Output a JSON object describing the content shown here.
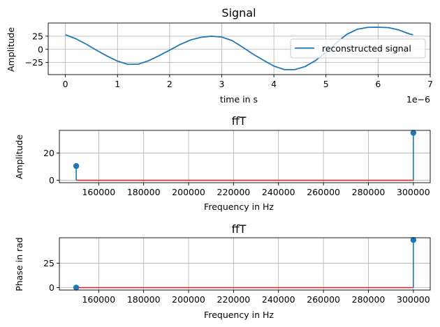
{
  "colors": {
    "series": "#1f77b4",
    "baseline": "#d62728",
    "grid": "#b0b0b0"
  },
  "chart_data": [
    {
      "type": "line",
      "title": "Signal",
      "xlabel": "time in s",
      "ylabel": "Amplitude",
      "x_offset_label": "1e−6",
      "xlim": [
        -0.33,
        7.0
      ],
      "ylim": [
        -48,
        50
      ],
      "xticks": [
        0,
        1,
        2,
        3,
        4,
        5,
        6,
        7
      ],
      "xtick_labels": [
        "0",
        "1",
        "2",
        "3",
        "4",
        "5",
        "6",
        "7"
      ],
      "yticks": [
        -25,
        0,
        25
      ],
      "ytick_labels": [
        "−25",
        "0",
        "25"
      ],
      "grid": true,
      "legend": {
        "position": "center-right",
        "entries": [
          "reconstructed signal"
        ]
      },
      "series": [
        {
          "name": "reconstructed signal",
          "x": [
            0.0,
            0.2,
            0.4,
            0.6,
            0.8,
            1.0,
            1.2,
            1.4,
            1.6,
            1.8,
            2.0,
            2.2,
            2.4,
            2.6,
            2.8,
            3.0,
            3.2,
            3.4,
            3.6,
            3.8,
            4.0,
            4.2,
            4.4,
            4.6,
            4.8,
            5.0,
            5.2,
            5.4,
            5.6,
            5.8,
            6.0,
            6.2,
            6.4,
            6.6,
            6.67
          ],
          "values": [
            27.7,
            20.2,
            9.8,
            -1.8,
            -12.8,
            -22.4,
            -28.6,
            -28.1,
            -21.5,
            -12.0,
            -1.6,
            9.2,
            17.7,
            22.9,
            24.9,
            23.3,
            16.6,
            4.1,
            -9.1,
            -20.7,
            -31.8,
            -38.5,
            -38.6,
            -32.7,
            -21.3,
            -5.6,
            12.5,
            28.5,
            38.1,
            41.7,
            42.1,
            41.2,
            36.7,
            29.3,
            27.7
          ]
        }
      ]
    },
    {
      "type": "stem",
      "title": "ffT",
      "xlabel": "Frequency in Hz",
      "ylabel": "Amplitude",
      "xlim": [
        142500,
        307500
      ],
      "ylim": [
        -1.75,
        36.7
      ],
      "xticks": [
        160000,
        180000,
        200000,
        220000,
        240000,
        260000,
        280000,
        300000
      ],
      "xtick_labels": [
        "160000",
        "180000",
        "200000",
        "220000",
        "240000",
        "260000",
        "280000",
        "300000"
      ],
      "yticks": [
        0,
        20
      ],
      "ytick_labels": [
        "0",
        "20"
      ],
      "grid": true,
      "series": [
        {
          "x": [
            150000,
            300000
          ],
          "values": [
            10.5,
            34.9
          ]
        }
      ]
    },
    {
      "type": "stem",
      "title": "ffT",
      "xlabel": "Frequency in Hz",
      "ylabel": "Phase in rad",
      "xlim": [
        142500,
        307500
      ],
      "ylim": [
        -2.5,
        51.0
      ],
      "xticks": [
        160000,
        180000,
        200000,
        220000,
        240000,
        260000,
        280000,
        300000
      ],
      "xtick_labels": [
        "160000",
        "180000",
        "200000",
        "220000",
        "240000",
        "260000",
        "280000",
        "300000"
      ],
      "yticks": [
        0,
        25
      ],
      "ytick_labels": [
        "0",
        "25"
      ],
      "grid": true,
      "series": [
        {
          "x": [
            150000,
            300000
          ],
          "values": [
            0.0,
            48.7
          ]
        }
      ]
    }
  ]
}
